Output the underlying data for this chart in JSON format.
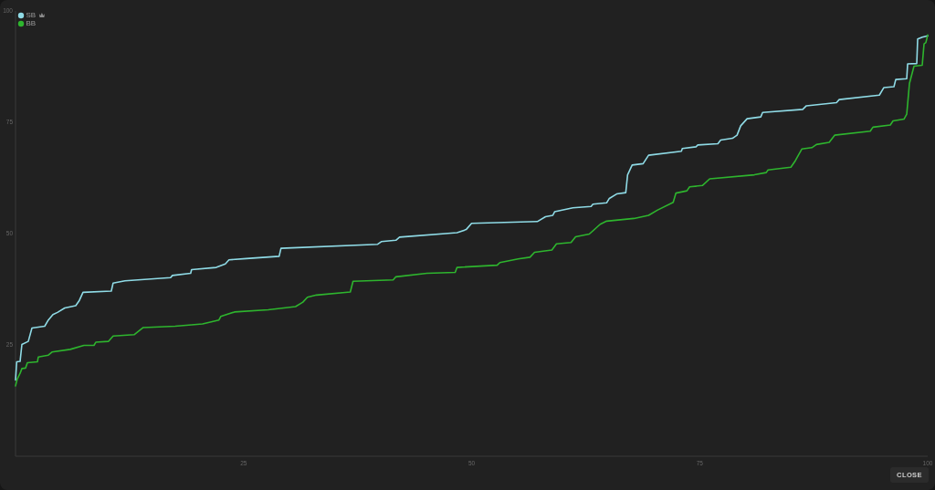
{
  "chart_data": {
    "type": "line",
    "xlim": [
      0,
      100
    ],
    "xticks": [
      25,
      50,
      75,
      100
    ],
    "ylim": [
      0,
      100
    ],
    "yticks": [
      25,
      50,
      75,
      100
    ],
    "legend": "top left",
    "marker": "none",
    "annotations": [
      "CLOSE"
    ],
    "series": [
      {
        "name": "SB",
        "color": "#8fdbe6",
        "x": [
          0,
          0.13,
          0.5,
          0.7,
          1.4,
          1.8,
          3.2,
          3.6,
          4.1,
          4.6,
          5.4,
          6.6,
          7.0,
          7.4,
          10.5,
          10.7,
          12.0,
          17.0,
          17.2,
          19.2,
          19.3,
          22.0,
          23.0,
          23.4,
          25.3,
          28.9,
          29.1,
          39.7,
          40.1,
          41.7,
          42.1,
          48.4,
          49.4,
          50.0,
          57.2,
          58.1,
          58.9,
          59.1,
          61.1,
          63.1,
          63.3,
          64.8,
          65.1,
          65.9,
          66.9,
          67.1,
          67.6,
          68.8,
          69.4,
          73.0,
          73.1,
          74.6,
          74.8,
          77.0,
          77.3,
          78.6,
          79.1,
          79.5,
          80.2,
          81.7,
          81.9,
          86.3,
          86.7,
          90.0,
          90.3,
          94.7,
          95.2,
          96.3,
          96.5,
          97.7,
          97.8,
          98.8,
          98.9,
          99.4,
          100
        ],
        "values": [
          17.1,
          21.2,
          21.3,
          25.1,
          25.8,
          28.8,
          29.2,
          30.6,
          31.8,
          32.3,
          33.3,
          33.8,
          35.0,
          36.8,
          37.1,
          38.9,
          39.4,
          40.1,
          40.6,
          41.1,
          41.9,
          42.4,
          43.2,
          44.1,
          44.4,
          44.9,
          46.7,
          47.6,
          48.2,
          48.5,
          49.2,
          50.2,
          50.9,
          52.3,
          52.7,
          53.8,
          54.1,
          54.9,
          55.8,
          56.1,
          56.6,
          56.9,
          57.9,
          58.9,
          59.2,
          63.2,
          65.4,
          65.7,
          67.6,
          68.5,
          69.1,
          69.5,
          69.9,
          70.2,
          71.0,
          71.4,
          72.1,
          74.2,
          75.8,
          76.2,
          77.2,
          77.9,
          78.7,
          79.4,
          80.1,
          81.1,
          82.8,
          83.0,
          84.6,
          84.8,
          88.1,
          88.2,
          93.7,
          94.1,
          94.4
        ]
      },
      {
        "name": "BB",
        "color": "#2eb52e",
        "x": [
          0,
          0.2,
          0.5,
          0.7,
          1.1,
          1.3,
          2.4,
          2.5,
          3.6,
          4.0,
          6.0,
          7.5,
          8.6,
          8.8,
          10.2,
          10.7,
          13.0,
          14.0,
          17.5,
          20.5,
          22.3,
          22.5,
          24.0,
          27.7,
          30.7,
          31.5,
          32.0,
          33.0,
          36.7,
          37.0,
          41.4,
          41.7,
          45.1,
          48.2,
          48.4,
          52.8,
          53.1,
          55.1,
          56.4,
          56.9,
          58.8,
          59.3,
          60.9,
          61.4,
          62.9,
          64.1,
          64.8,
          67.8,
          69.4,
          70.4,
          72.1,
          72.4,
          73.6,
          73.9,
          75.3,
          76.1,
          81.0,
          82.3,
          82.5,
          85.0,
          85.5,
          86.2,
          87.3,
          87.8,
          89.2,
          89.8,
          93.7,
          94.0,
          95.9,
          96.2,
          97.4,
          97.7,
          98.0,
          98.5,
          99.4,
          99.6,
          99.8,
          100
        ],
        "values": [
          15.8,
          17.4,
          18.6,
          19.7,
          19.8,
          21.0,
          21.2,
          22.3,
          22.7,
          23.4,
          24.0,
          24.9,
          24.9,
          25.6,
          25.8,
          27.0,
          27.3,
          28.9,
          29.2,
          29.7,
          30.6,
          31.4,
          32.4,
          32.9,
          33.6,
          34.6,
          35.7,
          36.2,
          36.9,
          39.3,
          39.6,
          40.3,
          41.1,
          41.3,
          42.4,
          42.9,
          43.5,
          44.3,
          44.7,
          45.8,
          46.3,
          47.7,
          48.0,
          49.3,
          49.9,
          52.1,
          52.8,
          53.4,
          54.1,
          55.3,
          57.0,
          59.1,
          59.6,
          60.5,
          60.8,
          62.3,
          63.2,
          63.7,
          64.3,
          64.9,
          66.4,
          69.0,
          69.3,
          70.0,
          70.5,
          72.1,
          73.0,
          73.9,
          74.4,
          75.3,
          75.7,
          76.8,
          83.7,
          87.6,
          87.8,
          92.6,
          92.9,
          94.6
        ]
      }
    ]
  }
}
